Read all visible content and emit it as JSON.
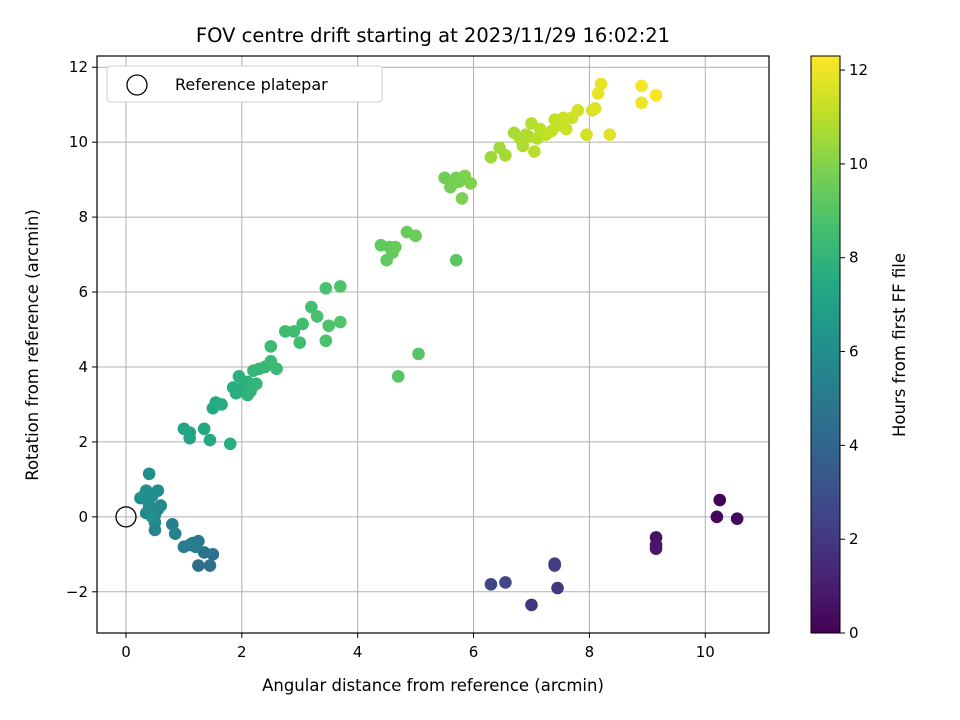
{
  "chart_data": {
    "type": "scatter",
    "title": "FOV centre drift starting at 2023/11/29 16:02:21",
    "xlabel": "Angular distance from reference (arcmin)",
    "ylabel": "Rotation from reference (arcmin)",
    "xlim": [
      -0.5,
      11.1
    ],
    "ylim": [
      -3.1,
      12.3
    ],
    "xticks": [
      0,
      2,
      4,
      6,
      8,
      10
    ],
    "yticks": [
      -2,
      0,
      2,
      4,
      6,
      8,
      10,
      12
    ],
    "grid": true,
    "colormap": "viridis",
    "colorbar": {
      "label": "Hours from first FF file",
      "range": [
        0,
        12.3
      ],
      "ticks": [
        0,
        2,
        4,
        6,
        8,
        10,
        12
      ]
    },
    "legend": {
      "position": "upper left",
      "entries": [
        {
          "label": "Reference platepar",
          "marker": "open-circle"
        }
      ]
    },
    "reference_point": {
      "x": 0,
      "y": 0
    },
    "points": [
      [
        10.25,
        0.45,
        0.1
      ],
      [
        10.2,
        0.0,
        0.2
      ],
      [
        10.55,
        -0.05,
        0.3
      ],
      [
        9.15,
        -0.55,
        0.6
      ],
      [
        9.15,
        -0.75,
        0.7
      ],
      [
        9.15,
        -0.85,
        0.8
      ],
      [
        7.0,
        -2.35,
        1.9
      ],
      [
        7.4,
        -1.25,
        2.1
      ],
      [
        7.4,
        -1.3,
        2.2
      ],
      [
        7.45,
        -1.9,
        2.0
      ],
      [
        6.3,
        -1.8,
        2.5
      ],
      [
        6.55,
        -1.75,
        2.6
      ],
      [
        1.25,
        -1.3,
        4.4
      ],
      [
        1.45,
        -1.3,
        4.5
      ],
      [
        1.5,
        -1.0,
        4.6
      ],
      [
        1.35,
        -0.95,
        4.7
      ],
      [
        1.15,
        -0.7,
        4.8
      ],
      [
        1.25,
        -0.65,
        4.9
      ],
      [
        1.2,
        -0.8,
        5.0
      ],
      [
        1.0,
        -0.8,
        5.1
      ],
      [
        1.1,
        -0.75,
        5.2
      ],
      [
        0.8,
        -0.2,
        5.3
      ],
      [
        0.85,
        -0.45,
        5.4
      ],
      [
        0.5,
        -0.35,
        5.5
      ],
      [
        0.5,
        -0.15,
        5.55
      ],
      [
        0.35,
        0.1,
        5.6
      ],
      [
        0.5,
        0.05,
        5.65
      ],
      [
        0.55,
        0.2,
        5.7
      ],
      [
        0.6,
        0.3,
        5.75
      ],
      [
        0.4,
        0.3,
        5.8
      ],
      [
        0.25,
        0.5,
        5.85
      ],
      [
        0.35,
        0.7,
        5.9
      ],
      [
        0.45,
        0.55,
        5.95
      ],
      [
        0.55,
        0.7,
        6.0
      ],
      [
        0.4,
        1.15,
        6.05
      ],
      [
        0.45,
        0.0,
        6.1
      ],
      [
        0.3,
        0.55,
        6.15
      ],
      [
        1.0,
        2.35,
        7.2
      ],
      [
        1.1,
        2.1,
        7.25
      ],
      [
        1.1,
        2.25,
        7.3
      ],
      [
        1.35,
        2.35,
        7.35
      ],
      [
        1.45,
        2.05,
        7.4
      ],
      [
        1.5,
        2.9,
        7.45
      ],
      [
        1.55,
        3.05,
        7.5
      ],
      [
        1.65,
        3.0,
        7.55
      ],
      [
        1.8,
        1.95,
        7.6
      ],
      [
        1.85,
        3.45,
        7.65
      ],
      [
        1.9,
        3.3,
        7.7
      ],
      [
        2.0,
        3.45,
        7.75
      ],
      [
        1.95,
        3.75,
        7.8
      ],
      [
        2.1,
        3.6,
        7.85
      ],
      [
        2.1,
        3.25,
        7.9
      ],
      [
        2.15,
        3.35,
        7.95
      ],
      [
        2.2,
        3.5,
        8.0
      ],
      [
        2.25,
        3.55,
        8.05
      ],
      [
        2.2,
        3.9,
        8.1
      ],
      [
        2.3,
        3.95,
        8.15
      ],
      [
        2.4,
        4.0,
        8.2
      ],
      [
        2.5,
        4.15,
        8.25
      ],
      [
        2.6,
        3.95,
        8.3
      ],
      [
        2.5,
        4.55,
        8.35
      ],
      [
        2.75,
        4.95,
        8.4
      ],
      [
        2.9,
        4.95,
        8.45
      ],
      [
        3.0,
        4.65,
        8.5
      ],
      [
        3.05,
        5.15,
        8.55
      ],
      [
        3.2,
        5.6,
        8.6
      ],
      [
        3.3,
        5.35,
        8.65
      ],
      [
        3.45,
        6.1,
        8.7
      ],
      [
        3.45,
        4.7,
        8.75
      ],
      [
        3.5,
        5.1,
        8.8
      ],
      [
        3.7,
        6.15,
        8.85
      ],
      [
        3.7,
        5.2,
        8.9
      ],
      [
        4.7,
        3.75,
        9.0
      ],
      [
        5.05,
        4.35,
        9.05
      ],
      [
        5.7,
        6.85,
        9.1
      ],
      [
        4.4,
        7.25,
        9.2
      ],
      [
        4.5,
        6.85,
        9.25
      ],
      [
        4.55,
        7.2,
        9.3
      ],
      [
        4.6,
        7.05,
        9.35
      ],
      [
        4.65,
        7.2,
        9.4
      ],
      [
        4.85,
        7.6,
        9.45
      ],
      [
        5.0,
        7.5,
        9.5
      ],
      [
        5.5,
        9.05,
        9.6
      ],
      [
        5.6,
        8.8,
        9.65
      ],
      [
        5.65,
        8.9,
        9.7
      ],
      [
        5.7,
        9.05,
        9.75
      ],
      [
        5.75,
        8.95,
        9.8
      ],
      [
        5.8,
        8.5,
        9.85
      ],
      [
        5.85,
        9.1,
        9.9
      ],
      [
        5.95,
        8.9,
        9.95
      ],
      [
        6.3,
        9.6,
        10.5
      ],
      [
        6.45,
        9.85,
        10.55
      ],
      [
        6.55,
        9.65,
        10.6
      ],
      [
        6.7,
        10.25,
        10.65
      ],
      [
        6.8,
        10.1,
        10.7
      ],
      [
        6.85,
        9.9,
        10.75
      ],
      [
        6.9,
        10.2,
        10.8
      ],
      [
        6.95,
        10.15,
        10.85
      ],
      [
        7.0,
        10.5,
        10.9
      ],
      [
        7.05,
        9.75,
        10.95
      ],
      [
        7.1,
        10.1,
        11.0
      ],
      [
        7.15,
        10.35,
        11.05
      ],
      [
        7.25,
        10.2,
        11.1
      ],
      [
        7.35,
        10.3,
        11.15
      ],
      [
        7.4,
        10.6,
        11.2
      ],
      [
        7.5,
        10.45,
        11.25
      ],
      [
        7.55,
        10.65,
        11.3
      ],
      [
        7.6,
        10.35,
        11.35
      ],
      [
        7.7,
        10.65,
        11.4
      ],
      [
        7.8,
        10.85,
        11.45
      ],
      [
        7.95,
        10.2,
        11.5
      ],
      [
        8.05,
        10.85,
        11.55
      ],
      [
        8.1,
        10.9,
        11.7
      ],
      [
        8.35,
        10.2,
        11.75
      ],
      [
        8.15,
        11.3,
        11.85
      ],
      [
        8.2,
        11.55,
        11.9
      ],
      [
        8.9,
        11.05,
        12.05
      ],
      [
        8.9,
        11.5,
        12.1
      ],
      [
        9.15,
        11.25,
        12.2
      ]
    ]
  }
}
